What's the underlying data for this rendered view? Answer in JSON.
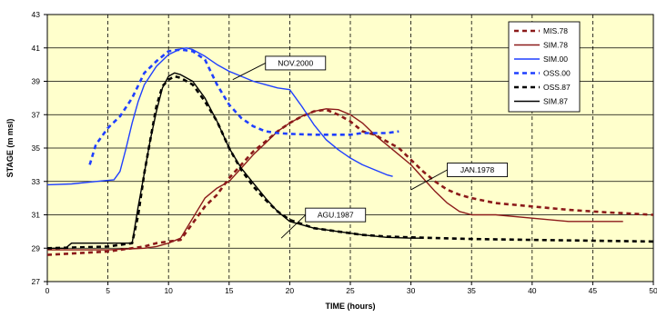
{
  "chart_data": {
    "type": "line",
    "xlabel": "TIME (hours)",
    "ylabel": "STAGE  (m msl)",
    "xlim": [
      0,
      50
    ],
    "ylim": [
      27,
      43
    ],
    "xticks": [
      0,
      5,
      10,
      15,
      20,
      25,
      30,
      35,
      40,
      45,
      50
    ],
    "yticks": [
      27,
      29,
      31,
      33,
      35,
      37,
      39,
      41,
      43
    ],
    "grid": "vertical dashed, horizontal solid",
    "legend_position": "top-right",
    "colors": {
      "plot_bg": "#ffffcc",
      "dark_red": "#8b1a1a",
      "blue": "#1f3fff",
      "black": "#000000"
    },
    "series": [
      {
        "name": "MIS.78",
        "color": "#8b1a1a",
        "dash": "dashed",
        "points": [
          [
            0,
            28.6
          ],
          [
            5,
            28.8
          ],
          [
            8,
            29.1
          ],
          [
            9,
            29.3
          ],
          [
            10,
            29.4
          ],
          [
            11,
            29.5
          ],
          [
            12,
            30.5
          ],
          [
            13,
            31.5
          ],
          [
            14,
            32.2
          ],
          [
            15,
            33.2
          ],
          [
            16,
            34.0
          ],
          [
            17,
            34.8
          ],
          [
            18,
            35.4
          ],
          [
            19,
            36.0
          ],
          [
            20,
            36.5
          ],
          [
            21,
            36.9
          ],
          [
            22,
            37.2
          ],
          [
            23,
            37.3
          ],
          [
            24,
            37.0
          ],
          [
            25,
            36.6
          ],
          [
            26,
            36.0
          ],
          [
            27,
            35.8
          ],
          [
            28,
            35.4
          ],
          [
            29,
            35.0
          ],
          [
            30,
            34.3
          ],
          [
            31,
            33.6
          ],
          [
            32,
            33.0
          ],
          [
            33,
            32.5
          ],
          [
            34,
            32.2
          ],
          [
            35,
            32.0
          ],
          [
            37,
            31.7
          ],
          [
            40,
            31.5
          ],
          [
            43,
            31.3
          ],
          [
            46,
            31.15
          ],
          [
            50,
            31.0
          ]
        ]
      },
      {
        "name": "SIM.78",
        "color": "#8b1a1a",
        "dash": "solid",
        "points": [
          [
            0,
            28.9
          ],
          [
            5,
            28.9
          ],
          [
            8,
            29.0
          ],
          [
            9,
            29.1
          ],
          [
            10,
            29.3
          ],
          [
            11,
            29.6
          ],
          [
            12,
            30.8
          ],
          [
            13,
            32.0
          ],
          [
            14,
            32.6
          ],
          [
            15,
            33.0
          ],
          [
            16,
            33.8
          ],
          [
            17,
            34.6
          ],
          [
            18,
            35.3
          ],
          [
            19,
            36.0
          ],
          [
            20,
            36.5
          ],
          [
            21,
            36.9
          ],
          [
            22,
            37.2
          ],
          [
            23,
            37.35
          ],
          [
            24,
            37.3
          ],
          [
            25,
            37.0
          ],
          [
            26,
            36.5
          ],
          [
            27,
            35.8
          ],
          [
            28,
            35.2
          ],
          [
            29,
            34.6
          ],
          [
            30,
            34.0
          ],
          [
            31,
            33.2
          ],
          [
            32,
            32.4
          ],
          [
            33,
            31.7
          ],
          [
            34,
            31.2
          ],
          [
            35,
            31.0
          ],
          [
            37,
            31.0
          ],
          [
            40,
            30.8
          ],
          [
            43,
            30.6
          ],
          [
            45,
            30.6
          ],
          [
            47.5,
            30.6
          ]
        ]
      },
      {
        "name": "SIM.00",
        "color": "#1f3fff",
        "dash": "solid",
        "points": [
          [
            0,
            32.8
          ],
          [
            2,
            32.85
          ],
          [
            4,
            33.0
          ],
          [
            5.5,
            33.1
          ],
          [
            6,
            33.6
          ],
          [
            6.5,
            35.0
          ],
          [
            7,
            36.5
          ],
          [
            7.5,
            37.8
          ],
          [
            8,
            38.8
          ],
          [
            9,
            39.9
          ],
          [
            10,
            40.6
          ],
          [
            11,
            40.95
          ],
          [
            11.5,
            41.0
          ],
          [
            12,
            40.9
          ],
          [
            13,
            40.5
          ],
          [
            14,
            40.0
          ],
          [
            15,
            39.6
          ],
          [
            16,
            39.3
          ],
          [
            17,
            39.0
          ],
          [
            18,
            38.8
          ],
          [
            19,
            38.6
          ],
          [
            20,
            38.5
          ],
          [
            21,
            37.5
          ],
          [
            22,
            36.4
          ],
          [
            23,
            35.5
          ],
          [
            24,
            34.9
          ],
          [
            25,
            34.4
          ],
          [
            26,
            34.0
          ],
          [
            27,
            33.7
          ],
          [
            28,
            33.4
          ],
          [
            28.5,
            33.3
          ]
        ]
      },
      {
        "name": "OSS.00",
        "color": "#1f3fff",
        "dash": "dashed",
        "points": [
          [
            3.5,
            34.0
          ],
          [
            4,
            35.2
          ],
          [
            5,
            36.2
          ],
          [
            6,
            36.9
          ],
          [
            7,
            38.0
          ],
          [
            8,
            39.5
          ],
          [
            9,
            40.2
          ],
          [
            10,
            40.8
          ],
          [
            11,
            40.9
          ],
          [
            12,
            40.8
          ],
          [
            13,
            40.3
          ],
          [
            14,
            38.8
          ],
          [
            14.5,
            38.2
          ],
          [
            15,
            37.6
          ],
          [
            16,
            36.8
          ],
          [
            17,
            36.3
          ],
          [
            18,
            36.0
          ],
          [
            19,
            35.9
          ],
          [
            20,
            35.85
          ],
          [
            22,
            35.8
          ],
          [
            24,
            35.8
          ],
          [
            25,
            35.8
          ],
          [
            26,
            35.9
          ],
          [
            28,
            35.9
          ],
          [
            29,
            36.0
          ]
        ]
      },
      {
        "name": "OSS.87",
        "color": "#000000",
        "dash": "dashed",
        "points": [
          [
            0,
            29.0
          ],
          [
            5,
            29.1
          ],
          [
            7,
            29.3
          ],
          [
            7.5,
            31.0
          ],
          [
            8,
            33.5
          ],
          [
            8.5,
            35.5
          ],
          [
            9,
            37.5
          ],
          [
            9.5,
            38.7
          ],
          [
            10,
            39.1
          ],
          [
            10.5,
            39.3
          ],
          [
            11,
            39.2
          ],
          [
            12,
            38.8
          ],
          [
            13,
            37.8
          ],
          [
            14,
            36.6
          ],
          [
            15,
            35.0
          ],
          [
            16,
            33.7
          ],
          [
            17,
            32.7
          ],
          [
            18,
            31.9
          ],
          [
            19,
            31.2
          ],
          [
            20,
            30.7
          ],
          [
            22,
            30.2
          ],
          [
            24,
            30.0
          ],
          [
            26,
            29.8
          ],
          [
            28,
            29.7
          ],
          [
            30,
            29.65
          ],
          [
            35,
            29.55
          ],
          [
            40,
            29.5
          ],
          [
            45,
            29.45
          ],
          [
            50,
            29.4
          ]
        ]
      },
      {
        "name": "SIM.87",
        "color": "#000000",
        "dash": "solid",
        "points": [
          [
            0,
            29.0
          ],
          [
            1.5,
            29.0
          ],
          [
            2,
            29.3
          ],
          [
            7,
            29.3
          ],
          [
            7.5,
            31.5
          ],
          [
            8,
            33.5
          ],
          [
            8.5,
            35.5
          ],
          [
            9,
            37.2
          ],
          [
            9.5,
            38.6
          ],
          [
            10,
            39.3
          ],
          [
            10.5,
            39.5
          ],
          [
            11,
            39.4
          ],
          [
            12,
            39.0
          ],
          [
            13,
            38.0
          ],
          [
            14,
            36.6
          ],
          [
            15,
            35.0
          ],
          [
            16,
            33.8
          ],
          [
            17,
            32.9
          ],
          [
            18,
            32.0
          ],
          [
            19,
            31.2
          ],
          [
            20,
            30.6
          ],
          [
            22,
            30.2
          ],
          [
            24,
            30.0
          ],
          [
            26,
            29.8
          ],
          [
            28,
            29.65
          ],
          [
            30,
            29.6
          ],
          [
            31,
            29.6
          ]
        ]
      }
    ],
    "annotations": [
      {
        "text": "NOV.2000",
        "anchor": [
          15.3,
          39.1
        ],
        "box_x": 18.0,
        "box_y": 40.5
      },
      {
        "text": "JAN.1978",
        "anchor": [
          30.0,
          32.5
        ],
        "box_x": 33.0,
        "box_y": 34.1
      },
      {
        "text": "AGU.1987",
        "anchor": [
          19.3,
          29.6
        ],
        "box_x": 21.3,
        "box_y": 31.4
      }
    ]
  }
}
